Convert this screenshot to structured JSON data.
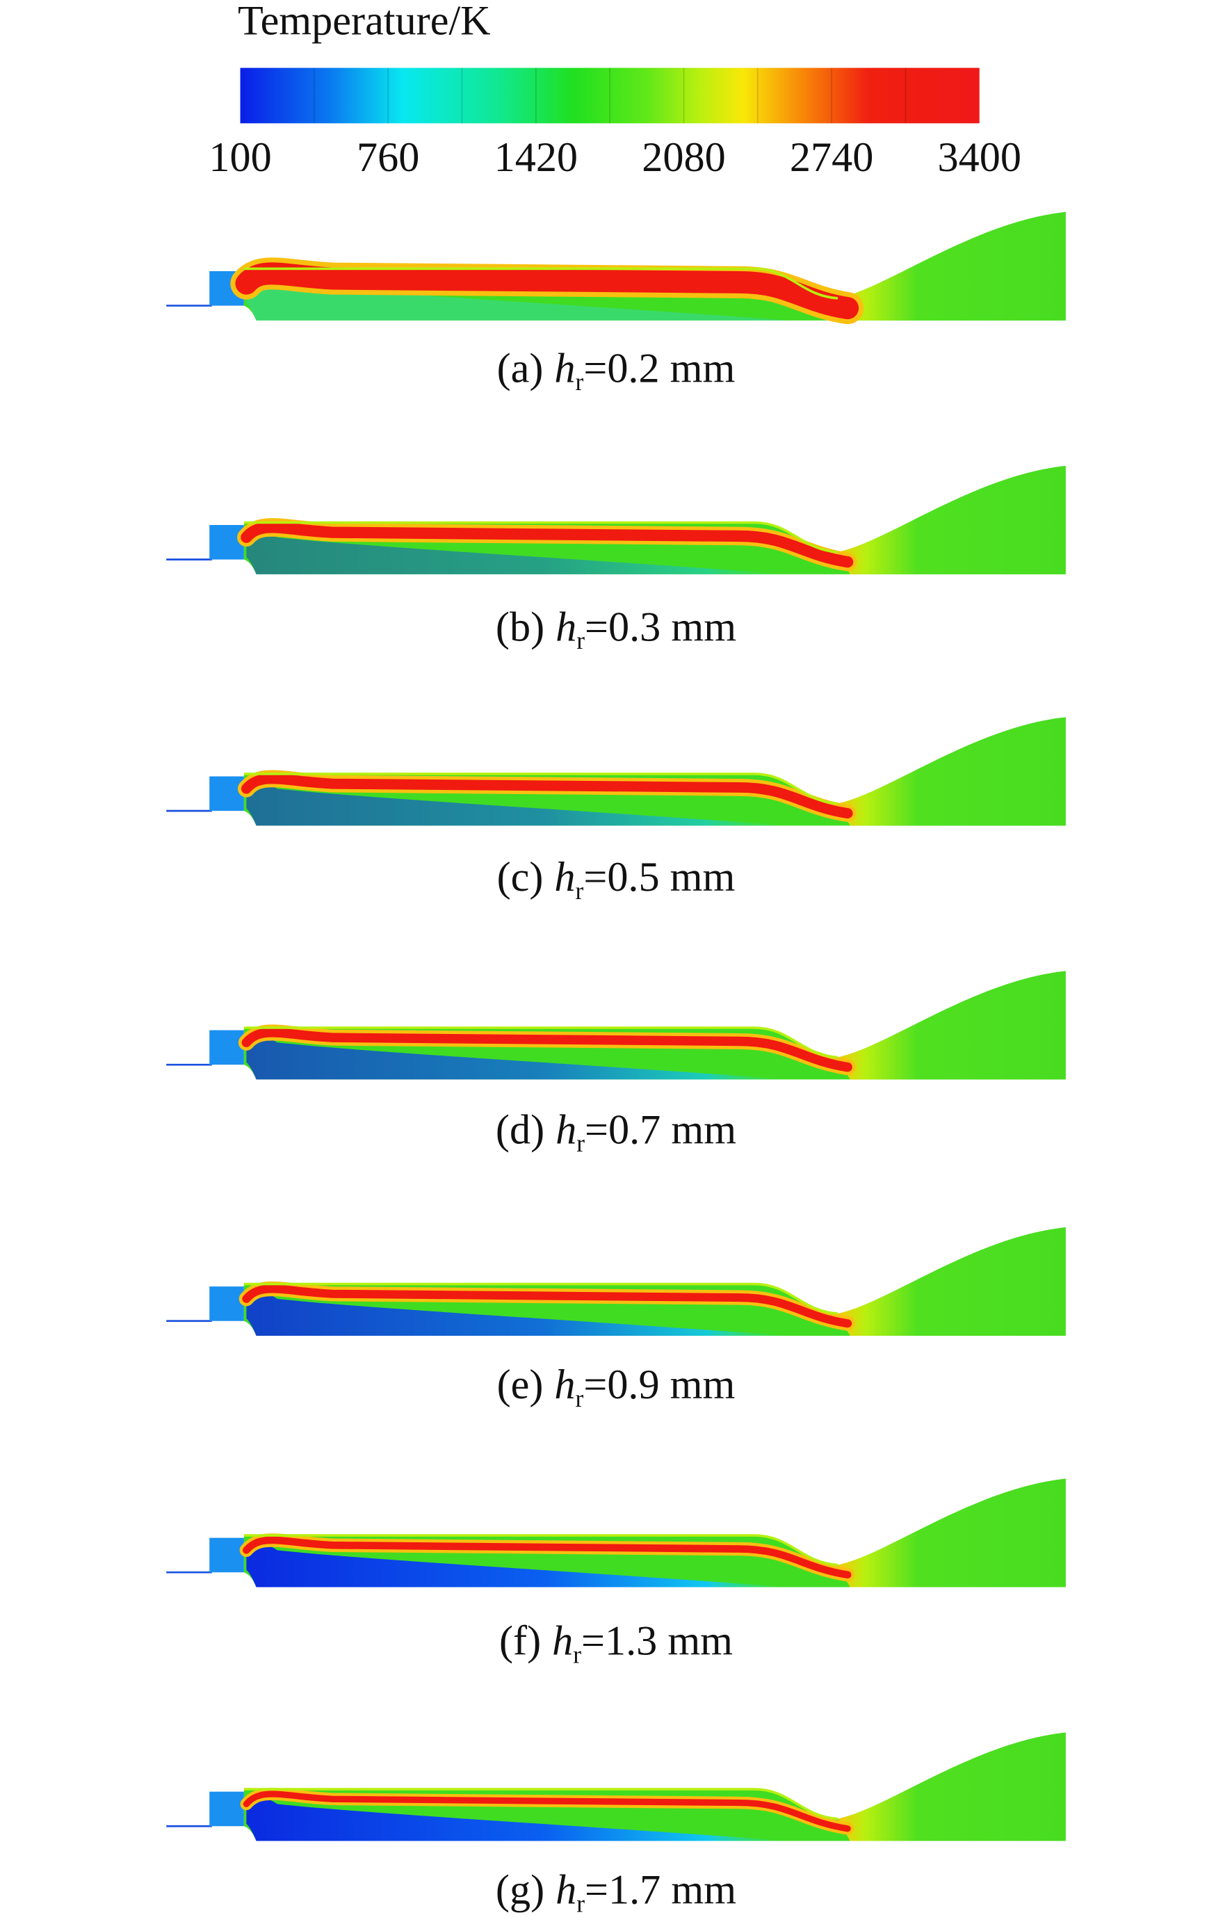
{
  "colorbar": {
    "title": "Temperature/K",
    "lim": [
      100,
      3400
    ],
    "ticks": [
      100,
      760,
      1420,
      2080,
      2740,
      3400
    ]
  },
  "panels": [
    {
      "label": "(a)",
      "symbol": "h",
      "subscript": "r",
      "text": "=0.2 mm"
    },
    {
      "label": "(b)",
      "symbol": "h",
      "subscript": "r",
      "text": "=0.3 mm"
    },
    {
      "label": "(c)",
      "symbol": "h",
      "subscript": "r",
      "text": "=0.5 mm"
    },
    {
      "label": "(d)",
      "symbol": "h",
      "subscript": "r",
      "text": "=0.7 mm"
    },
    {
      "label": "(e)",
      "symbol": "h",
      "subscript": "r",
      "text": "=0.9 mm"
    },
    {
      "label": "(f)",
      "symbol": "h",
      "subscript": "r",
      "text": "=1.3 mm"
    },
    {
      "label": "(g)",
      "symbol": "h",
      "subscript": "r",
      "text": "=1.7 mm"
    }
  ]
}
